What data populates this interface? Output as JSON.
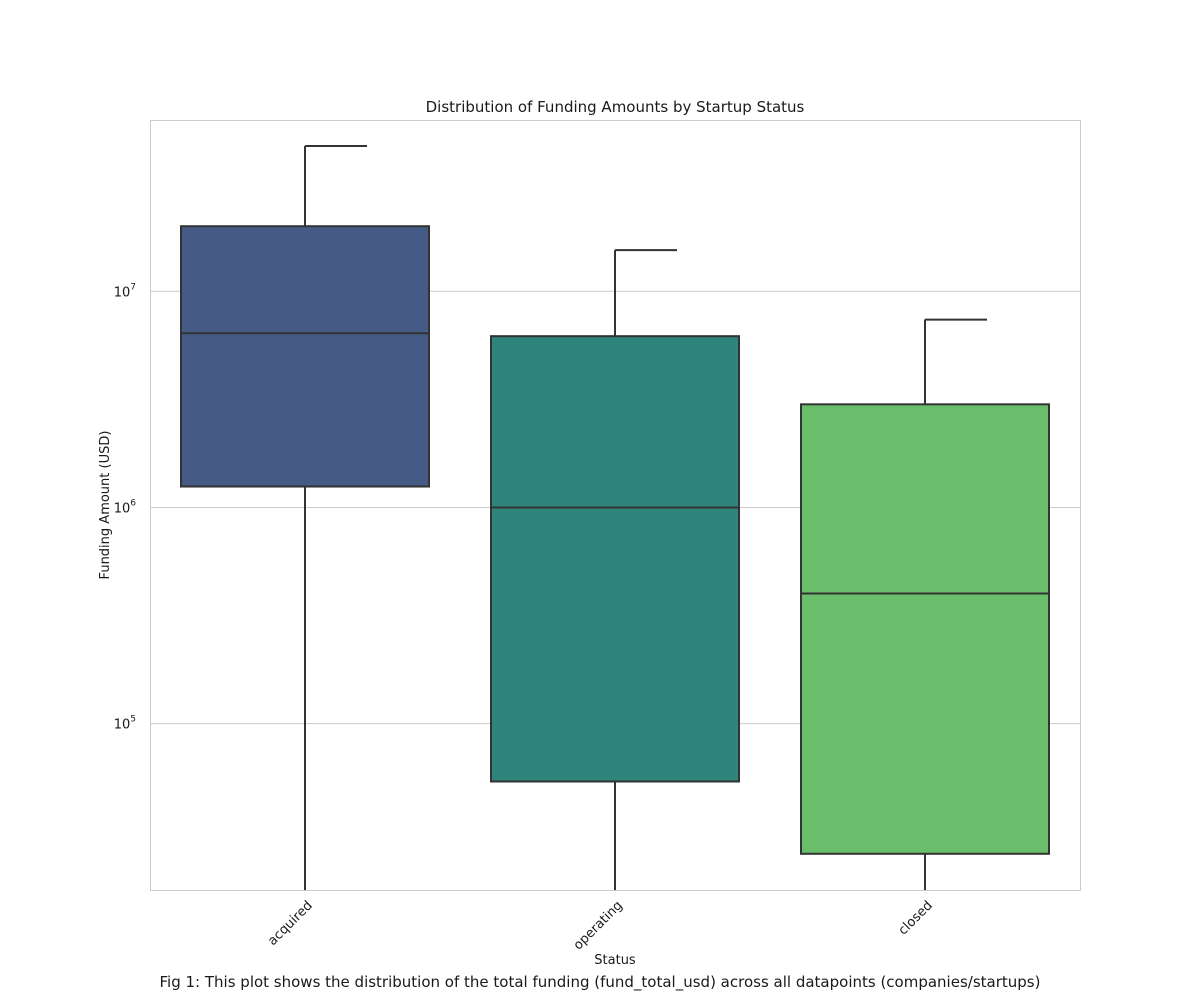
{
  "caption": "Fig 1: This plot shows the distribution of the total funding (fund_total_usd) across all datapoints (companies/startups)",
  "chart_data": {
    "type": "box",
    "title": "Distribution of Funding Amounts by Startup Status",
    "xlabel": "Status",
    "ylabel": "Funding Amount (USD)",
    "yscale": "log",
    "ylim": [
      17000,
      62000000
    ],
    "yticks": [
      {
        "value": 100000,
        "base": "10",
        "exp": "5"
      },
      {
        "value": 1000000,
        "base": "10",
        "exp": "6"
      },
      {
        "value": 10000000,
        "base": "10",
        "exp": "7"
      }
    ],
    "grid": true,
    "categories": [
      "acquired",
      "operating",
      "closed"
    ],
    "colors": [
      "#455a85",
      "#2f847c",
      "#6abd6a"
    ],
    "boxes": [
      {
        "category": "acquired",
        "whisker_low": 17000,
        "q1": 1250000,
        "median": 6400000,
        "q3": 20000000,
        "whisker_high": 47000000
      },
      {
        "category": "operating",
        "whisker_low": 17000,
        "q1": 54000,
        "median": 1000000,
        "q3": 6200000,
        "whisker_high": 15500000
      },
      {
        "category": "closed",
        "whisker_low": 17000,
        "q1": 25000,
        "median": 400000,
        "q3": 3000000,
        "whisker_high": 7400000
      }
    ]
  }
}
